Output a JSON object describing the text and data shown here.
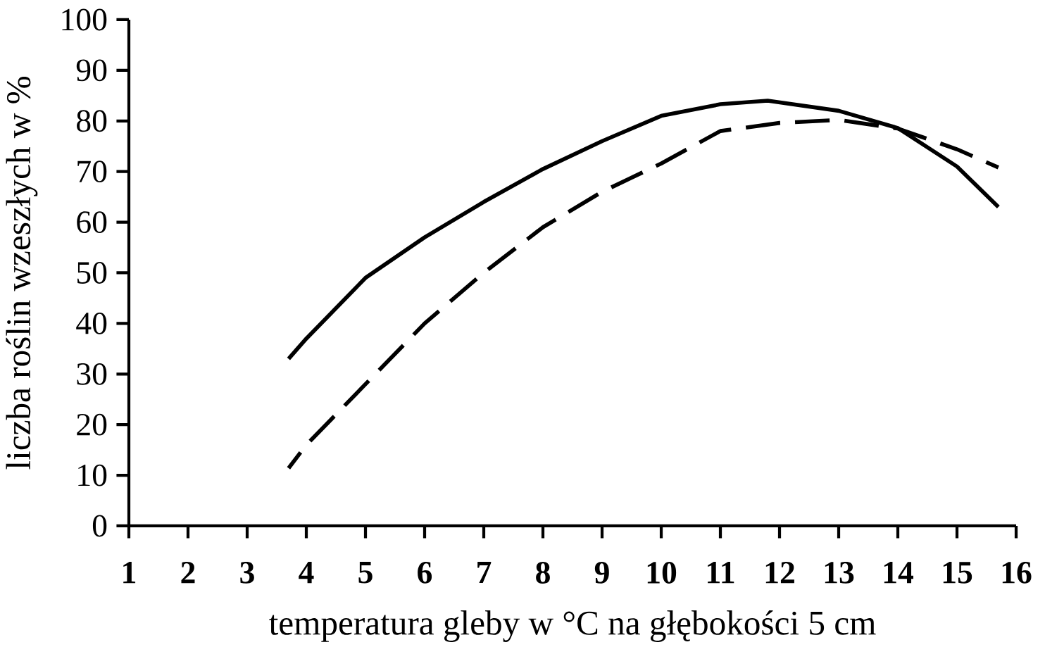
{
  "chart_data": {
    "type": "line",
    "xlabel": "temperatura gleby w °C na głębokości 5 cm",
    "ylabel": "liczba roślin wzeszłych w %",
    "xlim": [
      1,
      16
    ],
    "xticks": [
      1,
      2,
      3,
      4,
      5,
      6,
      7,
      8,
      9,
      10,
      11,
      12,
      13,
      14,
      15,
      16
    ],
    "ylim": [
      0,
      100
    ],
    "yticks": [
      0,
      10,
      20,
      30,
      40,
      50,
      60,
      70,
      80,
      90,
      100
    ],
    "grid": false,
    "marker": "none",
    "series": [
      {
        "color": "#000000",
        "line_style": "solid",
        "x": [
          3.7,
          4,
          5,
          6,
          7,
          8,
          9,
          10,
          11,
          11.8,
          13,
          14,
          15,
          15.7
        ],
        "values": [
          33,
          37,
          49,
          57,
          64,
          70.5,
          76,
          81,
          83.3,
          84,
          82,
          78.6,
          71,
          63
        ]
      },
      {
        "color": "#000000",
        "line_style": "dashed",
        "x": [
          3.7,
          4,
          5,
          6,
          7,
          8,
          9,
          10,
          11,
          12,
          13,
          14,
          15,
          15.7
        ],
        "values": [
          11.4,
          16,
          28,
          40,
          50,
          59,
          66,
          71.6,
          78,
          79.6,
          80.2,
          78.5,
          74.4,
          70.8
        ]
      }
    ]
  }
}
